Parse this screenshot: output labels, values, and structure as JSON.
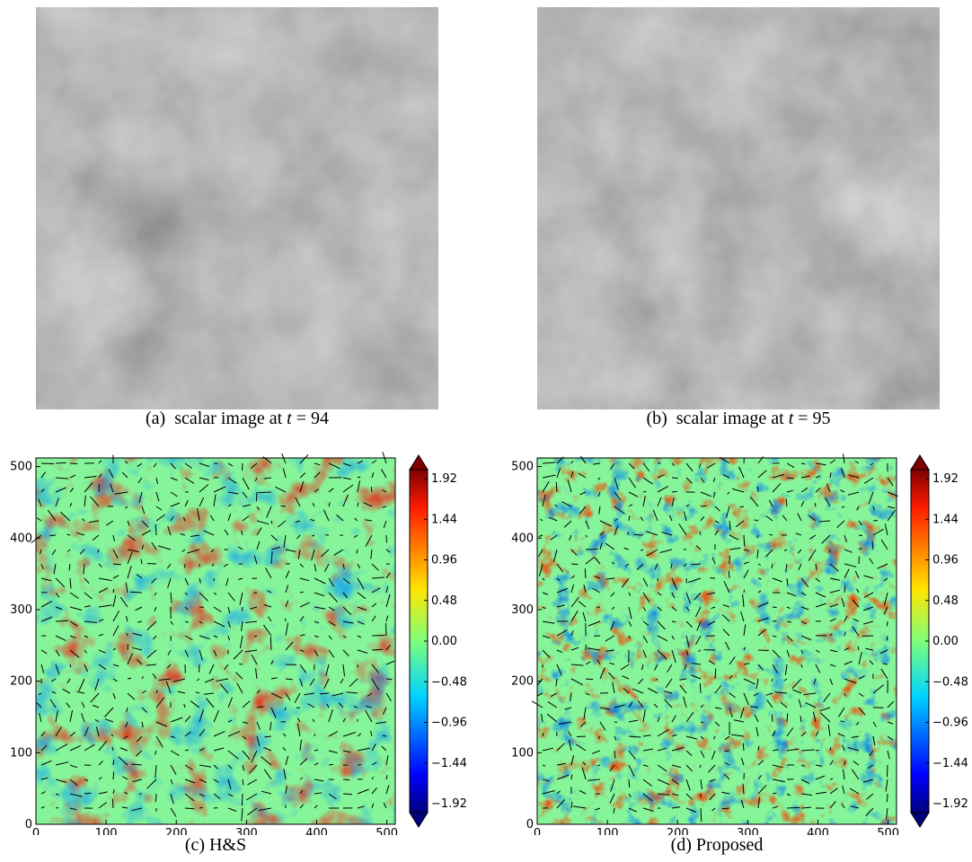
{
  "figure": {
    "panels": [
      {
        "id": "a",
        "caption_prefix": "(a)",
        "caption_text": "scalar image at",
        "caption_var": "t",
        "caption_eq": "= 94"
      },
      {
        "id": "b",
        "caption_prefix": "(b)",
        "caption_text": "scalar image at",
        "caption_var": "t",
        "caption_eq": "= 95"
      },
      {
        "id": "c",
        "caption": "(c) H&S"
      },
      {
        "id": "d",
        "caption": "(d) Proposed"
      }
    ]
  },
  "chart_data": [
    {
      "type": "heatmap",
      "title": "",
      "caption": "(c) H&S",
      "x_ticks": [
        0,
        100,
        200,
        300,
        400,
        500
      ],
      "y_ticks": [
        0,
        100,
        200,
        300,
        400,
        500
      ],
      "xlim": [
        0,
        512
      ],
      "ylim": [
        0,
        512
      ],
      "colorbar": {
        "colormap": "jet",
        "range": [
          -1.92,
          1.92
        ],
        "ticks": [
          "1.92",
          "1.44",
          "0.96",
          "0.48",
          "0.00",
          "−0.48",
          "−0.96",
          "−1.44",
          "−1.92"
        ],
        "extend": "both"
      },
      "overlay": "velocity vector field (quiver)"
    },
    {
      "type": "heatmap",
      "title": "",
      "caption": "(d) Proposed",
      "x_ticks": [
        0,
        100,
        200,
        300,
        400,
        500
      ],
      "y_ticks": [
        0,
        100,
        200,
        300,
        400,
        500
      ],
      "xlim": [
        0,
        512
      ],
      "ylim": [
        0,
        512
      ],
      "colorbar": {
        "colormap": "jet",
        "range": [
          -1.92,
          1.92
        ],
        "ticks": [
          "1.92",
          "1.44",
          "0.96",
          "0.48",
          "0.00",
          "−0.48",
          "−0.96",
          "−1.44",
          "−1.92"
        ],
        "extend": "both"
      },
      "overlay": "velocity vector field (quiver)"
    }
  ]
}
